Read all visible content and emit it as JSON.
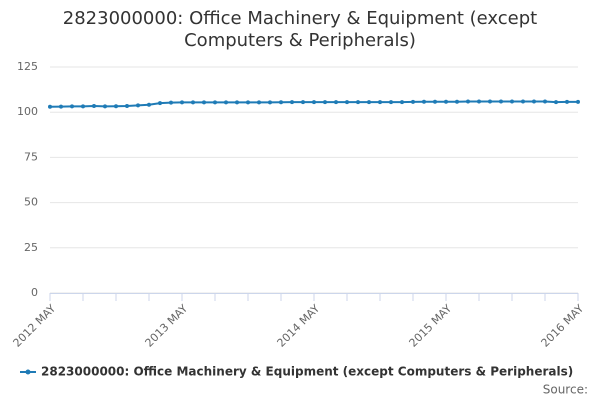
{
  "chart_data": {
    "type": "line",
    "title": "2823000000: Office Machinery & Equipment (except Computers & Peripherals)",
    "categories": [
      "2012 MAY",
      null,
      null,
      null,
      null,
      null,
      null,
      null,
      null,
      null,
      null,
      null,
      "2013 MAY",
      null,
      null,
      null,
      null,
      null,
      null,
      null,
      null,
      null,
      null,
      null,
      "2014 MAY",
      null,
      null,
      null,
      null,
      null,
      null,
      null,
      null,
      null,
      null,
      null,
      "2015 MAY",
      null,
      null,
      null,
      null,
      null,
      null,
      null,
      null,
      null,
      null,
      null,
      "2016 MAY"
    ],
    "series": [
      {
        "name": "2823000000: Office Machinery & Equipment (except Computers & Peripherals)",
        "color": "#1f7bb6",
        "values": [
          103,
          103.1,
          103.2,
          103.2,
          103.4,
          103.2,
          103.3,
          103.4,
          103.8,
          104.1,
          105,
          105.3,
          105.4,
          105.4,
          105.4,
          105.4,
          105.4,
          105.4,
          105.4,
          105.4,
          105.4,
          105.5,
          105.6,
          105.6,
          105.6,
          105.6,
          105.6,
          105.6,
          105.6,
          105.6,
          105.6,
          105.6,
          105.6,
          105.7,
          105.8,
          105.8,
          105.8,
          105.8,
          105.9,
          105.9,
          105.9,
          105.9,
          105.9,
          105.9,
          105.9,
          105.9,
          105.6,
          105.7,
          105.7
        ]
      }
    ],
    "ylim": [
      0,
      125
    ],
    "yticks": [
      0,
      25,
      50,
      75,
      100,
      125
    ],
    "grid": true,
    "legend": "bottom",
    "source_label": "Source:"
  }
}
